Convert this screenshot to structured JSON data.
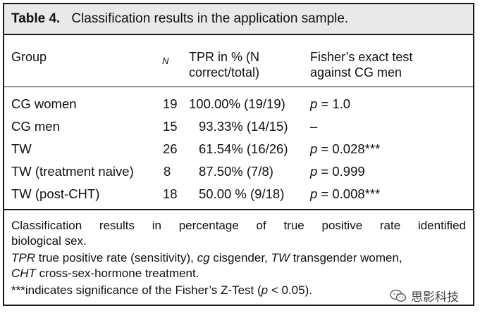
{
  "caption": {
    "label": "Table 4.",
    "title": "Classification results in the application sample."
  },
  "header": {
    "group": "Group",
    "n": "N",
    "tpr_line1": "TPR in % (N",
    "tpr_line2": "correct/total)",
    "fisher_line1": "Fisher’s exact test",
    "fisher_line2": "against CG men"
  },
  "rows": [
    {
      "group": "CG women",
      "n": "19",
      "tpr": "100.00% (19/19)",
      "p": "p",
      "fisher": " = 1.0"
    },
    {
      "group": "CG men",
      "n": "15",
      "tpr": "93.33% (14/15)",
      "p": "",
      "fisher": "–"
    },
    {
      "group": "TW",
      "n": "26",
      "tpr": "61.54% (16/26)",
      "p": "p",
      "fisher": " = 0.028***"
    },
    {
      "group": "TW (treatment naive)",
      "n": "8",
      "tpr": "87.50% (7/8)",
      "p": "p",
      "fisher": " = 0.999"
    },
    {
      "group": "TW (post-CHT)",
      "n": "18",
      "tpr": "50.00 % (9/18)",
      "p": "p",
      "fisher": " = 0.008***"
    }
  ],
  "footnotes": {
    "line1a": "Classification results in percentage of true positive rate identified",
    "line1b": "biological sex.",
    "tpr_abbr": "TPR",
    "tpr_def": " true positive rate (sensitivity), ",
    "cg_abbr": "cg",
    "cg_def": " cisgender, ",
    "tw_abbr": "TW",
    "tw_def": " transgender women,",
    "cht_abbr": "CHT",
    "cht_def": " cross-sex-hormone treatment.",
    "sig_a": "***indicates significance of the Fisher’s Z-Test (",
    "sig_p": "p",
    "sig_b": " < 0.05)."
  },
  "watermark": {
    "text": "思影科技",
    "icon": "wechat-icon"
  }
}
